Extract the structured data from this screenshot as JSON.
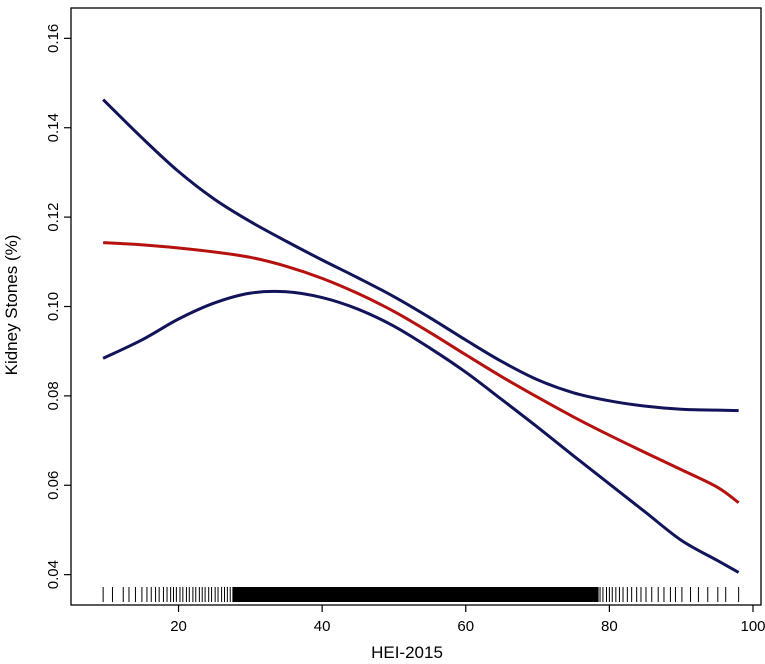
{
  "chart_data": {
    "type": "line",
    "title": "",
    "xlabel": "HEI-2015",
    "ylabel": "Kidney Stones (%)",
    "xlim": [
      6,
      100
    ],
    "ylim": [
      0.035,
      0.165
    ],
    "x_ticks": [
      20,
      40,
      60,
      80,
      100
    ],
    "y_ticks": [
      0.04,
      0.06,
      0.08,
      0.1,
      0.12,
      0.14,
      0.16
    ],
    "x_tick_labels": [
      "20",
      "40",
      "60",
      "80",
      "100"
    ],
    "y_tick_labels": [
      "0.04",
      "0.06",
      "0.08",
      "0.10",
      "0.12",
      "0.14",
      "0.16"
    ],
    "grid": false,
    "legend": "none",
    "series": [
      {
        "role": "estimate",
        "color": "#b5120f",
        "x": [
          9.5,
          15,
          20,
          25,
          30,
          35,
          40,
          45,
          50,
          55,
          60,
          65,
          70,
          75,
          80,
          85,
          90,
          95,
          98
        ],
        "y": [
          0.1143,
          0.1138,
          0.1131,
          0.1122,
          0.111,
          0.109,
          0.1063,
          0.1029,
          0.0989,
          0.0942,
          0.0892,
          0.0843,
          0.0797,
          0.0753,
          0.0712,
          0.0673,
          0.0635,
          0.0596,
          0.0561
        ]
      },
      {
        "role": "upper-ci",
        "color": "#12145a",
        "x": [
          9.5,
          15,
          20,
          25,
          30,
          35,
          40,
          45,
          50,
          55,
          60,
          65,
          70,
          75,
          80,
          85,
          90,
          95,
          98
        ],
        "y": [
          0.1463,
          0.1376,
          0.1302,
          0.124,
          0.119,
          0.1146,
          0.1104,
          0.1064,
          0.1022,
          0.0975,
          0.0925,
          0.0877,
          0.0836,
          0.0807,
          0.0789,
          0.0777,
          0.077,
          0.0768,
          0.0767
        ]
      },
      {
        "role": "lower-ci",
        "color": "#12145a",
        "x": [
          9.5,
          15,
          20,
          25,
          30,
          35,
          40,
          45,
          50,
          55,
          60,
          65,
          70,
          75,
          80,
          85,
          90,
          95,
          98
        ],
        "y": [
          0.0884,
          0.0926,
          0.0972,
          0.1008,
          0.103,
          0.1033,
          0.102,
          0.0994,
          0.0956,
          0.0907,
          0.0853,
          0.0792,
          0.073,
          0.0666,
          0.0603,
          0.054,
          0.0477,
          0.0432,
          0.0405
        ]
      }
    ],
    "rug": {
      "color": "#000000",
      "min": 9.5,
      "max": 98,
      "sparse": [
        9.5,
        10.8,
        12.3,
        13.1,
        14.0,
        14.9,
        15.6,
        16.2,
        16.8,
        17.3,
        17.9,
        18.4,
        18.9,
        19.3,
        19.7,
        20.2,
        20.6,
        21.1,
        21.5,
        22.0,
        22.4,
        22.9,
        23.3,
        23.7,
        24.2,
        24.6,
        25.1,
        25.5,
        26.0,
        26.4,
        26.8,
        27.2,
        27.6,
        28.1,
        28.5,
        28.9,
        29.4,
        29.8,
        30.3,
        30.7,
        31.1,
        31.6,
        32.0,
        32.5,
        32.9,
        33.3,
        33.8,
        34.2,
        34.7,
        35.1,
        35.5,
        36.0,
        36.4,
        36.9,
        37.3,
        37.7,
        38.2,
        38.6,
        39.1,
        39.5,
        39.9,
        40.4,
        40.8,
        41.3,
        41.7,
        42.1,
        42.6,
        43.0,
        43.5,
        43.9,
        44.3,
        44.8,
        45.2,
        45.7,
        46.1,
        46.5,
        47.0,
        47.4,
        47.9,
        48.3,
        48.7,
        49.2,
        49.6,
        50.1,
        50.5,
        50.9,
        51.4,
        51.8,
        52.3,
        52.7,
        53.1,
        53.6,
        54.0,
        54.5,
        54.9,
        55.3,
        55.8,
        56.2,
        56.7,
        57.1,
        57.5,
        58.0,
        58.4,
        58.9,
        59.3,
        59.7,
        60.2,
        60.6,
        61.1,
        61.5,
        61.9,
        62.4,
        62.8,
        63.3,
        63.7,
        64.1,
        64.6,
        65.0,
        65.5,
        65.9,
        66.3,
        66.8,
        67.2,
        67.7,
        68.1,
        68.5,
        69.0,
        69.4,
        69.9,
        70.3,
        70.7,
        71.2,
        71.6,
        72.1,
        72.5,
        72.9,
        73.4,
        73.8,
        74.3,
        74.7,
        75.1,
        75.6,
        76.0,
        76.5,
        76.9,
        77.3,
        77.8,
        78.2,
        78.7,
        79.1,
        79.6,
        80.0,
        80.4,
        80.9,
        81.4,
        81.9,
        82.5,
        83.1,
        83.8,
        84.4,
        85.1,
        85.9,
        86.8,
        87.6,
        88.5,
        89.2,
        90.1,
        91.3,
        92.4,
        93.7,
        95.1,
        96.2,
        98.0
      ],
      "dense_band": [
        27.5,
        78.5
      ]
    }
  }
}
